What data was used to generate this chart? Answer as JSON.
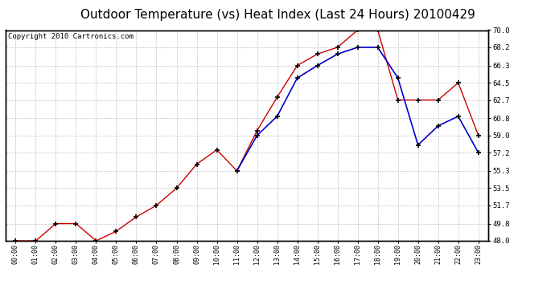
{
  "title": "Outdoor Temperature (vs) Heat Index (Last 24 Hours) 20100429",
  "copyright": "Copyright 2010 Cartronics.com",
  "x_labels": [
    "00:00",
    "01:00",
    "02:00",
    "03:00",
    "04:00",
    "05:00",
    "06:00",
    "07:00",
    "08:00",
    "09:00",
    "10:00",
    "11:00",
    "12:00",
    "13:00",
    "14:00",
    "15:00",
    "16:00",
    "17:00",
    "18:00",
    "19:00",
    "20:00",
    "21:00",
    "22:00",
    "23:00"
  ],
  "temp_red": [
    48.0,
    48.0,
    49.8,
    49.8,
    48.0,
    49.0,
    50.5,
    51.7,
    53.5,
    56.0,
    57.5,
    55.3,
    59.5,
    63.0,
    66.3,
    67.5,
    68.2,
    70.0,
    70.0,
    62.7,
    62.7,
    62.7,
    64.5,
    59.0
  ],
  "heat_blue": [
    null,
    null,
    null,
    null,
    null,
    null,
    null,
    null,
    null,
    null,
    null,
    55.3,
    59.0,
    61.0,
    65.0,
    66.3,
    67.5,
    68.2,
    68.2,
    65.0,
    58.0,
    60.0,
    61.0,
    57.2
  ],
  "ylim": [
    48.0,
    70.0
  ],
  "yticks": [
    48.0,
    49.8,
    51.7,
    53.5,
    55.3,
    57.2,
    59.0,
    60.8,
    62.7,
    64.5,
    66.3,
    68.2,
    70.0
  ],
  "bg_color": "#ffffff",
  "plot_bg": "#ffffff",
  "grid_color": "#bbbbbb",
  "red_color": "#cc0000",
  "blue_color": "#0000cc",
  "title_fontsize": 11,
  "copyright_fontsize": 6.5
}
